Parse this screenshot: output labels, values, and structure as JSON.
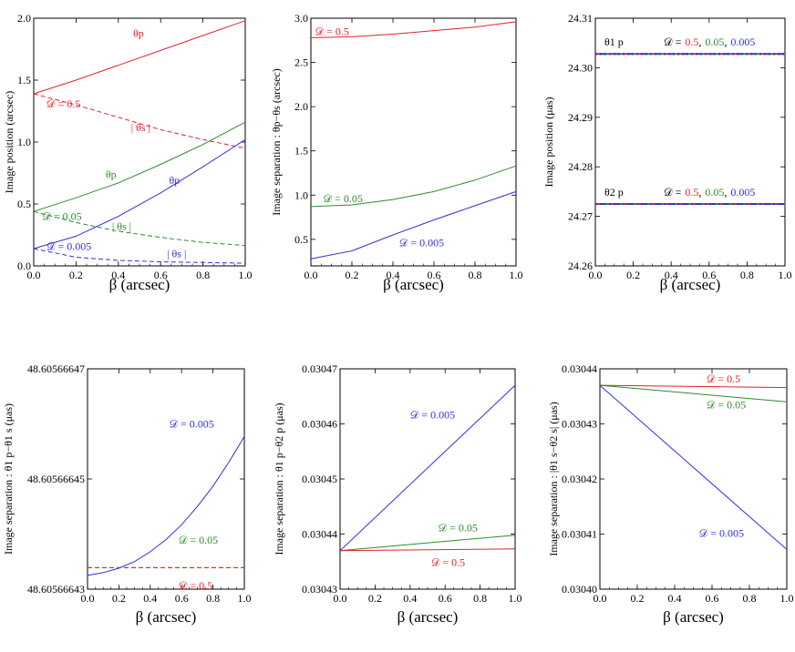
{
  "chart_data": [
    {
      "type": "line",
      "panel": "top-left",
      "xlabel": "β (arcsec)",
      "ylabel": "Image  position (arcsec)",
      "xlim": [
        0,
        1
      ],
      "ylim": [
        0,
        2
      ],
      "xticks": [
        "0.0",
        "0.2",
        "0.4",
        "0.6",
        "0.8",
        "1.0"
      ],
      "xtick_values": [
        0,
        0.2,
        0.4,
        0.6,
        0.8,
        1.0
      ],
      "yticks": [
        "0.0",
        "0.5",
        "1.0",
        "1.5",
        "2.0"
      ],
      "ytick_values": [
        0,
        0.5,
        1.0,
        1.5,
        2.0
      ],
      "series": [
        {
          "name": "θp (D = 0.5)",
          "color": "#e8202a",
          "dash": "solid",
          "x": [
            0,
            0.2,
            0.4,
            0.6,
            0.8,
            1.0
          ],
          "y": [
            1.39,
            1.5,
            1.62,
            1.74,
            1.86,
            1.98
          ]
        },
        {
          "name": "|θs| (D = 0.5)",
          "color": "#e8202a",
          "dash": "dashed",
          "x": [
            0,
            0.2,
            0.4,
            0.6,
            0.8,
            1.0
          ],
          "y": [
            1.39,
            1.3,
            1.2,
            1.1,
            1.02,
            0.95
          ]
        },
        {
          "name": "θp (D = 0.05)",
          "color": "#2e8b2e",
          "dash": "solid",
          "x": [
            0,
            0.2,
            0.4,
            0.6,
            0.8,
            1.0
          ],
          "y": [
            0.44,
            0.55,
            0.67,
            0.82,
            0.98,
            1.16
          ]
        },
        {
          "name": "|θs| (D = 0.05)",
          "color": "#2e8b2e",
          "dash": "dashed",
          "x": [
            0,
            0.2,
            0.4,
            0.6,
            0.8,
            1.0
          ],
          "y": [
            0.44,
            0.35,
            0.28,
            0.23,
            0.19,
            0.165
          ]
        },
        {
          "name": "θp (D = 0.005)",
          "color": "#3030e0",
          "dash": "solid",
          "x": [
            0,
            0.2,
            0.4,
            0.6,
            0.8,
            1.0
          ],
          "y": [
            0.14,
            0.24,
            0.4,
            0.59,
            0.8,
            1.02
          ]
        },
        {
          "name": "|θs| (D = 0.005)",
          "color": "#3030e0",
          "dash": "dashed",
          "x": [
            0,
            0.2,
            0.4,
            0.6,
            0.8,
            1.0
          ],
          "y": [
            0.14,
            0.07,
            0.045,
            0.033,
            0.027,
            0.022
          ]
        }
      ],
      "annotations": [
        {
          "text": "θp",
          "color": "#e8202a",
          "x": 0.47,
          "y": 1.85
        },
        {
          "text": "𝒟 = 0.5",
          "color": "#e8202a",
          "x": 0.06,
          "y": 1.28
        },
        {
          "text": "| θs |",
          "color": "#e8202a",
          "x": 0.46,
          "y": 1.09
        },
        {
          "text": "θp",
          "color": "#2e8b2e",
          "x": 0.34,
          "y": 0.71
        },
        {
          "text": "𝒟 = 0.05",
          "color": "#2e8b2e",
          "x": 0.04,
          "y": 0.37
        },
        {
          "text": "| θs |",
          "color": "#2e8b2e",
          "x": 0.37,
          "y": 0.29
        },
        {
          "text": "θp",
          "color": "#3030e0",
          "x": 0.64,
          "y": 0.66
        },
        {
          "text": "𝒟 = 0.005",
          "color": "#3030e0",
          "x": 0.06,
          "y": 0.13
        },
        {
          "text": "| θs |",
          "color": "#3030e0",
          "x": 0.63,
          "y": 0.07
        }
      ]
    },
    {
      "type": "line",
      "panel": "top-middle",
      "xlabel": "β (arcsec)",
      "ylabel": "Image  separation : θp−θs (arcsec)",
      "xlim": [
        0,
        1
      ],
      "ylim": [
        0.2,
        3.0
      ],
      "xticks": [
        "0.0",
        "0.2",
        "0.4",
        "0.6",
        "0.8",
        "1.0"
      ],
      "xtick_values": [
        0,
        0.2,
        0.4,
        0.6,
        0.8,
        1.0
      ],
      "yticks": [
        "0.5",
        "1.0",
        "1.5",
        "2.0",
        "2.5",
        "3.0"
      ],
      "ytick_values": [
        0.5,
        1.0,
        1.5,
        2.0,
        2.5,
        3.0
      ],
      "series": [
        {
          "name": "D = 0.5",
          "color": "#e8202a",
          "dash": "solid",
          "x": [
            0,
            0.2,
            0.4,
            0.6,
            0.8,
            1.0
          ],
          "y": [
            2.78,
            2.79,
            2.82,
            2.86,
            2.9,
            2.96
          ]
        },
        {
          "name": "D = 0.05",
          "color": "#2e8b2e",
          "dash": "solid",
          "x": [
            0,
            0.2,
            0.4,
            0.6,
            0.8,
            1.0
          ],
          "y": [
            0.87,
            0.89,
            0.95,
            1.04,
            1.17,
            1.33
          ]
        },
        {
          "name": "D = 0.005",
          "color": "#3030e0",
          "dash": "solid",
          "x": [
            0,
            0.2,
            0.4,
            0.6,
            0.8,
            1.0
          ],
          "y": [
            0.28,
            0.37,
            0.55,
            0.72,
            0.88,
            1.04
          ]
        }
      ],
      "annotations": [
        {
          "text": "𝒟 = 0.5",
          "color": "#e8202a",
          "x": 0.02,
          "y": 2.81
        },
        {
          "text": "𝒟 = 0.05",
          "color": "#2e8b2e",
          "x": 0.06,
          "y": 0.92
        },
        {
          "text": "𝒟 = 0.005",
          "color": "#3030e0",
          "x": 0.43,
          "y": 0.42
        }
      ]
    },
    {
      "type": "line",
      "panel": "top-right",
      "xlabel": "β (arcsec)",
      "ylabel": "Image  position (μas)",
      "xlim": [
        0,
        1
      ],
      "ylim": [
        24.26,
        24.31
      ],
      "xticks": [
        "0.0",
        "0.2",
        "0.4",
        "0.6",
        "0.8",
        "1.0"
      ],
      "xtick_values": [
        0,
        0.2,
        0.4,
        0.6,
        0.8,
        1.0
      ],
      "yticks": [
        "24.26",
        "24.27",
        "24.28",
        "24.29",
        "24.30",
        "24.31"
      ],
      "ytick_values": [
        24.26,
        24.27,
        24.28,
        24.29,
        24.3,
        24.31
      ],
      "series": [
        {
          "name": "θ1p (D = 0.5, 0.05, 0.005)",
          "colors": [
            "#e8202a",
            "#2e8b2e",
            "#3030e0"
          ],
          "dash": "dashdot",
          "x": [
            0,
            1
          ],
          "y": [
            24.3028,
            24.3028
          ]
        },
        {
          "name": "θ2p (D = 0.5, 0.05, 0.005)",
          "colors": [
            "#e8202a",
            "#2e8b2e",
            "#3030e0"
          ],
          "dash": "dashdot",
          "x": [
            0,
            1
          ],
          "y": [
            24.2725,
            24.2725
          ]
        }
      ],
      "label_rows": [
        {
          "theta": "θ1 p",
          "prefix": "𝒟 =",
          "v1": "0.5",
          "v2": "0.05",
          "v3": "0.005",
          "y": 24.3045
        },
        {
          "theta": "θ2 p",
          "prefix": "𝒟 =",
          "v1": "0.5",
          "v2": "0.05",
          "v3": "0.005",
          "y": 24.2742
        }
      ]
    },
    {
      "type": "line",
      "panel": "bottom-left",
      "xlabel": "β (arcsec)",
      "ylabel": "Image  separation : θ1 p−θ1 s (μas)",
      "xlim": [
        0,
        1
      ],
      "ylim": [
        48.60566643,
        48.60566647
      ],
      "xticks": [
        "0.0",
        "0.2",
        "0.4",
        "0.6",
        "0.8",
        "1.0"
      ],
      "xtick_values": [
        0,
        0.2,
        0.4,
        0.6,
        0.8,
        1.0
      ],
      "yticks": [
        "48.60566643",
        "48.60566645",
        "48.60566647"
      ],
      "ytick_values": [
        48.60566643,
        48.60566645,
        48.60566647
      ],
      "series": [
        {
          "name": "D = 0.005",
          "color": "#3030e0",
          "dash": "solid",
          "x": [
            0,
            0.1,
            0.2,
            0.3,
            0.4,
            0.5,
            0.6,
            0.7,
            0.8,
            0.9,
            1.0
          ],
          "y": [
            48.6056664325,
            48.605666433,
            48.6056664338,
            48.605666435,
            48.6056664368,
            48.605666439,
            48.6056664417,
            48.605666445,
            48.6056664487,
            48.605666453,
            48.6056664577
          ]
        },
        {
          "name": "D = 0.05",
          "color": "#2e8b2e",
          "dash": "dashed",
          "x": [
            0,
            1
          ],
          "y": [
            48.6056664339,
            48.6056664339
          ]
        },
        {
          "name": "D = 0.5",
          "color": "#e8202a",
          "dash": "dashed",
          "x": [
            0,
            1
          ],
          "y": [
            48.6056664339,
            48.6056664339
          ]
        }
      ],
      "annotations": [
        {
          "text": "𝒟 = 0.005",
          "color": "#3030e0",
          "x": 0.52,
          "y": 48.6056664593
        },
        {
          "text": "𝒟 = 0.05",
          "color": "#2e8b2e",
          "x": 0.58,
          "y": 48.6056664383
        },
        {
          "text": "𝒟 = 0.5",
          "color": "#e8202a",
          "x": 0.58,
          "y": 48.60566643
        }
      ]
    },
    {
      "type": "line",
      "panel": "bottom-middle",
      "xlabel": "β (arcsec)",
      "ylabel": "Image  separation : θ1 p−θ2 p (μas)",
      "xlim": [
        0,
        1
      ],
      "ylim": [
        0.03043,
        0.03047
      ],
      "xticks": [
        "0.0",
        "0.2",
        "0.4",
        "0.6",
        "0.8",
        "1.0"
      ],
      "xtick_values": [
        0,
        0.2,
        0.4,
        0.6,
        0.8,
        1.0
      ],
      "yticks": [
        "0.03043",
        "0.03044",
        "0.03045",
        "0.03046",
        "0.03047"
      ],
      "ytick_values": [
        0.03043,
        0.03044,
        0.03045,
        0.03046,
        0.03047
      ],
      "series": [
        {
          "name": "D = 0.005",
          "color": "#3030e0",
          "dash": "solid",
          "x": [
            0,
            1
          ],
          "y": [
            0.030437,
            0.030467
          ]
        },
        {
          "name": "D = 0.05",
          "color": "#2e8b2e",
          "dash": "solid",
          "x": [
            0,
            1
          ],
          "y": [
            0.030437,
            0.0304398
          ]
        },
        {
          "name": "D = 0.5",
          "color": "#e8202a",
          "dash": "solid",
          "x": [
            0,
            1
          ],
          "y": [
            0.030437,
            0.0304373
          ]
        }
      ],
      "annotations": [
        {
          "text": "𝒟 = 0.005",
          "color": "#3030e0",
          "x": 0.4,
          "y": 0.030461
        },
        {
          "text": "𝒟 = 0.05",
          "color": "#2e8b2e",
          "x": 0.56,
          "y": 0.0304405
        },
        {
          "text": "𝒟 = 0.5",
          "color": "#e8202a",
          "x": 0.52,
          "y": 0.0304342
        }
      ]
    },
    {
      "type": "line",
      "panel": "bottom-right",
      "xlabel": "β (arcsec)",
      "ylabel": "Image  separation : |θ1 s−θ2 s| (μas)",
      "xlim": [
        0,
        1
      ],
      "ylim": [
        0.0304,
        0.03044
      ],
      "xticks": [
        "0.0",
        "0.2",
        "0.4",
        "0.6",
        "0.8",
        "1.0"
      ],
      "xtick_values": [
        0,
        0.2,
        0.4,
        0.6,
        0.8,
        1.0
      ],
      "yticks": [
        "0.03040",
        "0.03041",
        "0.03042",
        "0.03043",
        "0.03044"
      ],
      "ytick_values": [
        0.0304,
        0.03041,
        0.03042,
        0.03043,
        0.03044
      ],
      "series": [
        {
          "name": "D = 0.5",
          "color": "#e8202a",
          "dash": "solid",
          "x": [
            0,
            1
          ],
          "y": [
            0.030437,
            0.0304366
          ]
        },
        {
          "name": "D = 0.05",
          "color": "#2e8b2e",
          "dash": "solid",
          "x": [
            0,
            1
          ],
          "y": [
            0.030437,
            0.030434
          ]
        },
        {
          "name": "D = 0.005",
          "color": "#3030e0",
          "dash": "solid",
          "x": [
            0,
            1
          ],
          "y": [
            0.030437,
            0.0304072
          ]
        }
      ],
      "annotations": [
        {
          "text": "𝒟 = 0.5",
          "color": "#e8202a",
          "x": 0.57,
          "y": 0.0304375
        },
        {
          "text": "𝒟 = 0.05",
          "color": "#2e8b2e",
          "x": 0.57,
          "y": 0.0304328
        },
        {
          "text": "𝒟 = 0.005",
          "color": "#3030e0",
          "x": 0.53,
          "y": 0.0304095
        }
      ]
    }
  ]
}
